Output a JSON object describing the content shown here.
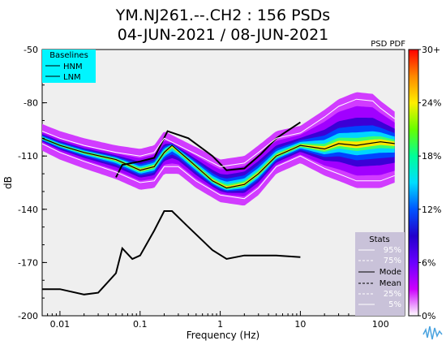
{
  "header": {
    "title_line1": "YM.NJ261.--.CH2 : 156 PSDs",
    "title_line2": "04-JUN-2021 / 08-JUN-2021",
    "corner_label": "PSD PDF"
  },
  "baselines_legend": {
    "title": "Baselines",
    "items": [
      "HNM",
      "LNM"
    ],
    "background": "#00f5ff"
  },
  "stats_legend": {
    "title": "Stats",
    "items": [
      "95%",
      "75%",
      "Mode",
      "Mean",
      "25%",
      "5%"
    ],
    "background": "#c9c2d9"
  },
  "colorbar": {
    "tick_labels": [
      "30+",
      "24%",
      "18%",
      "12%",
      "6%",
      "0%"
    ],
    "colors": [
      "#ff0000",
      "#ff8800",
      "#ffee00",
      "#66ff00",
      "#00ff99",
      "#00ddff",
      "#0055ff",
      "#2200cc",
      "#6a00ff",
      "#cc00ff",
      "#ffffff"
    ]
  },
  "chart_data": {
    "type": "line",
    "xlabel": "Frequency (Hz)",
    "ylabel": "dB",
    "xscale": "log",
    "xlim": [
      0.006,
      200
    ],
    "ylim": [
      -200,
      -50
    ],
    "x_tick_labels": [
      "0.01",
      "0.1",
      "1",
      "10",
      "100"
    ],
    "y_tick_labels": [
      "-50",
      "-80",
      "-110",
      "-140",
      "-170",
      "-200"
    ],
    "grid": false,
    "series": [
      {
        "name": "HNM",
        "x": [
          0.05,
          0.06,
          0.1,
          0.15,
          0.22,
          0.4,
          0.8,
          1.2,
          2,
          3.2,
          5,
          10
        ],
        "y": [
          -122,
          -115,
          -113,
          -111,
          -96,
          -100,
          -110,
          -118,
          -117,
          -109,
          -100,
          -91
        ]
      },
      {
        "name": "LNM",
        "x": [
          0.006,
          0.01,
          0.02,
          0.03,
          0.05,
          0.06,
          0.08,
          0.1,
          0.15,
          0.2,
          0.25,
          0.4,
          0.8,
          1.2,
          2,
          3,
          5,
          10
        ],
        "y": [
          -185,
          -185,
          -188,
          -187,
          -176,
          -162,
          -168,
          -166,
          -152,
          -141,
          -141,
          -150,
          -163,
          -168,
          -166,
          -166,
          -166,
          -167
        ]
      },
      {
        "name": "Mode",
        "x": [
          0.006,
          0.01,
          0.02,
          0.05,
          0.1,
          0.15,
          0.2,
          0.25,
          0.4,
          0.8,
          1.2,
          2,
          3,
          5,
          8,
          10,
          20,
          30,
          50,
          100,
          150
        ],
        "y": [
          -100,
          -104,
          -108,
          -112,
          -118,
          -116,
          -108,
          -104,
          -112,
          -124,
          -128,
          -126,
          -120,
          -110,
          -106,
          -104,
          -106,
          -103,
          -104,
          -102,
          -103
        ]
      },
      {
        "name": "95%",
        "x": [
          0.006,
          0.01,
          0.02,
          0.05,
          0.1,
          0.15,
          0.2,
          0.3,
          0.5,
          1,
          2,
          3,
          5,
          10,
          20,
          30,
          50,
          80,
          100,
          150
        ],
        "y": [
          -96,
          -100,
          -104,
          -108,
          -110,
          -108,
          -100,
          -104,
          -109,
          -116,
          -114,
          -108,
          -100,
          -97,
          -88,
          -82,
          -78,
          -79,
          -83,
          -89
        ]
      },
      {
        "name": "5%",
        "x": [
          0.006,
          0.01,
          0.02,
          0.05,
          0.1,
          0.15,
          0.2,
          0.3,
          0.5,
          1,
          2,
          3,
          5,
          10,
          20,
          30,
          50,
          80,
          100,
          150
        ],
        "y": [
          -103,
          -108,
          -113,
          -119,
          -125,
          -124,
          -116,
          -116,
          -124,
          -132,
          -134,
          -128,
          -116,
          -110,
          -117,
          -120,
          -124,
          -124,
          -124,
          -121
        ]
      }
    ]
  }
}
